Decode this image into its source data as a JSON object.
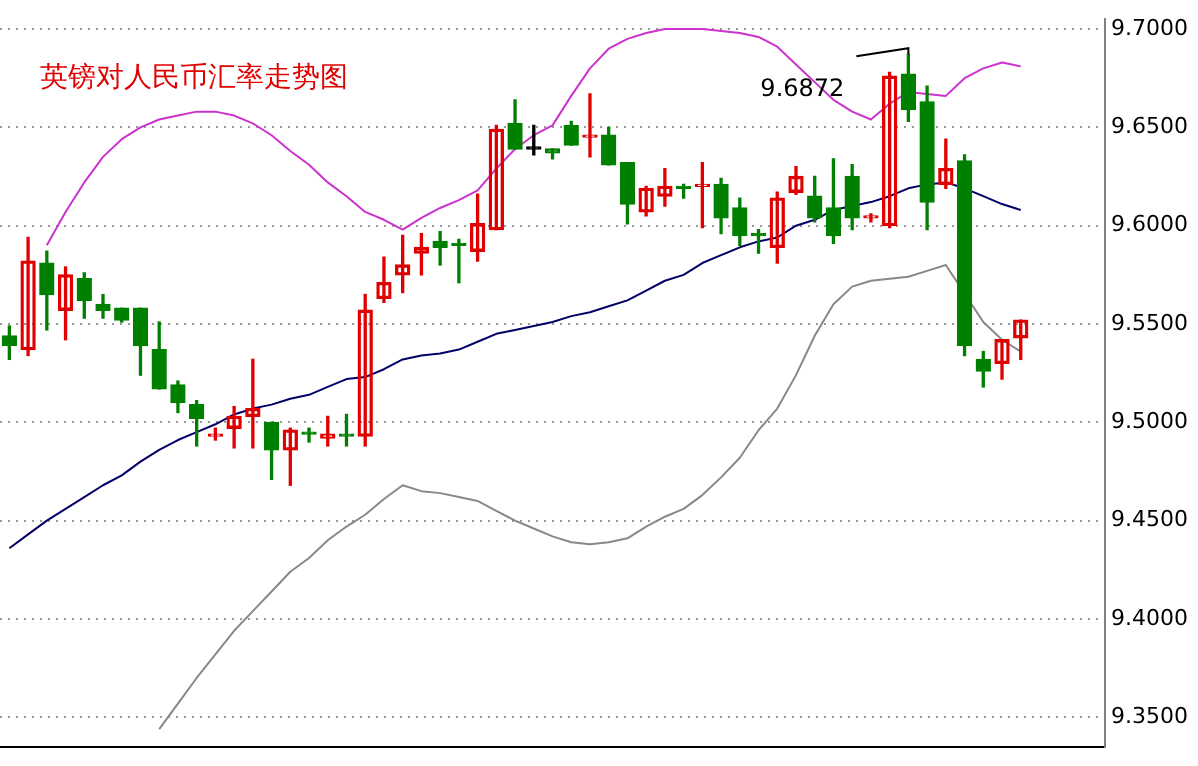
{
  "chart_data": {
    "type": "candlestick",
    "title": "英镑对人民币汇率走势图",
    "categories": [
      null,
      null,
      null,
      null,
      null,
      null,
      null,
      null,
      null,
      null,
      null,
      null,
      null,
      null,
      null,
      null,
      null,
      null,
      null,
      null,
      null,
      null,
      null,
      null,
      null,
      null,
      null,
      null,
      null,
      null,
      null,
      null,
      null,
      null,
      null,
      null,
      null,
      null,
      null,
      null,
      null,
      null,
      null,
      null,
      null,
      null,
      null,
      null,
      null,
      null,
      null,
      null,
      null,
      null,
      null
    ],
    "ohlc": [
      [
        9.544,
        9.549,
        9.532,
        9.539
      ],
      [
        9.537,
        9.594,
        9.534,
        9.582
      ],
      [
        9.581,
        9.587,
        9.547,
        9.565
      ],
      [
        9.557,
        9.579,
        9.542,
        9.575
      ],
      [
        9.573,
        9.576,
        9.553,
        9.562
      ],
      [
        9.56,
        9.565,
        9.553,
        9.557
      ],
      [
        9.558,
        9.558,
        9.551,
        9.552
      ],
      [
        9.558,
        9.558,
        9.524,
        9.539
      ],
      [
        9.537,
        9.551,
        9.517,
        9.517
      ],
      [
        9.519,
        9.521,
        9.505,
        9.51
      ],
      [
        9.509,
        9.511,
        9.488,
        9.502
      ],
      [
        9.493,
        9.497,
        9.491,
        9.494
      ],
      [
        9.497,
        9.508,
        9.487,
        9.503
      ],
      [
        9.503,
        9.532,
        9.487,
        9.507
      ],
      [
        9.5,
        9.5,
        9.471,
        9.486
      ],
      [
        9.486,
        9.497,
        9.468,
        9.496
      ],
      [
        9.495,
        9.497,
        9.49,
        9.494
      ],
      [
        9.492,
        9.503,
        9.488,
        9.494
      ],
      [
        9.494,
        9.504,
        9.488,
        9.493
      ],
      [
        9.493,
        9.565,
        9.488,
        9.557
      ],
      [
        9.563,
        9.584,
        9.561,
        9.571
      ],
      [
        9.575,
        9.595,
        9.566,
        9.58
      ],
      [
        9.586,
        9.596,
        9.575,
        9.589
      ],
      [
        9.592,
        9.597,
        9.58,
        9.589
      ],
      [
        9.591,
        9.593,
        9.571,
        9.59
      ],
      [
        9.587,
        9.616,
        9.582,
        9.601
      ],
      [
        9.598,
        9.651,
        9.598,
        9.649
      ],
      [
        9.652,
        9.664,
        9.639,
        9.639
      ],
      [
        9.639,
        9.651,
        9.636,
        9.639
      ],
      [
        9.639,
        9.639,
        9.634,
        9.637
      ],
      [
        9.651,
        9.653,
        9.641,
        9.641
      ],
      [
        9.645,
        9.667,
        9.635,
        9.646
      ],
      [
        9.646,
        9.65,
        9.631,
        9.631
      ],
      [
        9.632,
        9.632,
        9.601,
        9.611
      ],
      [
        9.607,
        9.62,
        9.605,
        9.619
      ],
      [
        9.615,
        9.629,
        9.61,
        9.62
      ],
      [
        9.62,
        9.621,
        9.614,
        9.619
      ],
      [
        9.62,
        9.632,
        9.599,
        9.621
      ],
      [
        9.621,
        9.624,
        9.596,
        9.604
      ],
      [
        9.609,
        9.614,
        9.59,
        9.595
      ],
      [
        9.596,
        9.598,
        9.586,
        9.595
      ],
      [
        9.589,
        9.617,
        9.581,
        9.614
      ],
      [
        9.617,
        9.63,
        9.616,
        9.625
      ],
      [
        9.615,
        9.625,
        9.602,
        9.604
      ],
      [
        9.609,
        9.634,
        9.591,
        9.595
      ],
      [
        9.625,
        9.631,
        9.598,
        9.604
      ],
      [
        9.604,
        9.606,
        9.602,
        9.605
      ],
      [
        9.6,
        9.678,
        9.599,
        9.676
      ],
      [
        9.677,
        9.6872,
        9.653,
        9.659
      ],
      [
        9.663,
        9.671,
        9.598,
        9.612
      ],
      [
        9.621,
        9.644,
        9.619,
        9.629
      ],
      [
        9.633,
        9.636,
        9.534,
        9.539
      ],
      [
        9.532,
        9.536,
        9.518,
        9.526
      ],
      [
        9.53,
        9.542,
        9.522,
        9.542
      ],
      [
        9.543,
        9.552,
        9.532,
        9.552
      ]
    ],
    "colors": [
      "#008000",
      "#e00000",
      "#008000",
      "#e00000",
      "#008000",
      "#008000",
      "#008000",
      "#008000",
      "#008000",
      "#008000",
      "#008000",
      "#e00000",
      "#e00000",
      "#e00000",
      "#008000",
      "#e00000",
      "#008000",
      "#e00000",
      "#008000",
      "#e00000",
      "#e00000",
      "#e00000",
      "#e00000",
      "#008000",
      "#008000",
      "#e00000",
      "#e00000",
      "#008000",
      "#000000",
      "#008000",
      "#008000",
      "#e00000",
      "#008000",
      "#008000",
      "#e00000",
      "#e00000",
      "#008000",
      "#e00000",
      "#008000",
      "#008000",
      "#008000",
      "#e00000",
      "#e00000",
      "#008000",
      "#008000",
      "#008000",
      "#e00000",
      "#e00000",
      "#008000",
      "#008000",
      "#e00000",
      "#008000",
      "#008000",
      "#e00000",
      "#e00000"
    ],
    "series": [
      {
        "type": "line",
        "color": "#cc33cc",
        "values": [
          null,
          null,
          9.59,
          9.607,
          9.622,
          9.635,
          9.644,
          9.65,
          9.654,
          9.656,
          9.658,
          9.658,
          9.656,
          9.652,
          9.646,
          9.638,
          9.631,
          9.622,
          9.615,
          9.607,
          9.603,
          9.598,
          9.604,
          9.609,
          9.613,
          9.618,
          9.629,
          9.639,
          9.646,
          9.651,
          9.666,
          9.68,
          9.69,
          9.695,
          9.698,
          9.7,
          9.7,
          9.7,
          9.699,
          9.698,
          9.696,
          9.691,
          9.682,
          9.673,
          9.664,
          9.658,
          9.654,
          9.662,
          9.668,
          9.667,
          9.666,
          9.675,
          9.68,
          9.683,
          9.681
        ]
      },
      {
        "type": "line",
        "color": "#000066",
        "values": [
          9.436,
          9.443,
          9.45,
          9.456,
          9.462,
          9.468,
          9.473,
          9.48,
          9.486,
          9.491,
          9.495,
          9.499,
          9.504,
          9.507,
          9.509,
          9.512,
          9.514,
          9.518,
          9.522,
          9.523,
          9.527,
          9.532,
          9.534,
          9.535,
          9.537,
          9.541,
          9.545,
          9.547,
          9.549,
          9.551,
          9.554,
          9.556,
          9.559,
          9.562,
          9.567,
          9.572,
          9.575,
          9.581,
          9.585,
          9.589,
          9.592,
          9.594,
          9.6,
          9.603,
          9.608,
          9.61,
          9.612,
          9.615,
          9.619,
          9.621,
          9.622,
          9.619,
          9.615,
          9.611,
          9.608
        ]
      },
      {
        "type": "line",
        "color": "#888888",
        "values": [
          null,
          null,
          null,
          null,
          null,
          null,
          null,
          null,
          9.344,
          9.357,
          9.37,
          9.382,
          9.394,
          9.404,
          9.414,
          9.424,
          9.431,
          9.44,
          9.447,
          9.453,
          9.461,
          9.468,
          9.465,
          9.464,
          9.462,
          9.46,
          9.455,
          9.45,
          9.446,
          9.442,
          9.439,
          9.438,
          9.439,
          9.441,
          9.447,
          9.452,
          9.456,
          9.463,
          9.472,
          9.482,
          9.496,
          9.507,
          9.524,
          9.544,
          9.56,
          9.569,
          9.572,
          9.573,
          9.574,
          9.577,
          9.58,
          null,
          9.551,
          9.542,
          9.536
        ]
      }
    ],
    "ylim": [
      9.335,
      9.705
    ],
    "yticks": [
      {
        "value": 9.35,
        "label": "9.3500"
      },
      {
        "value": 9.4,
        "label": "9.4000"
      },
      {
        "value": 9.45,
        "label": "9.4500"
      },
      {
        "value": 9.5,
        "label": "9.5000"
      },
      {
        "value": 9.55,
        "label": "9.5500"
      },
      {
        "value": 9.6,
        "label": "9.6000"
      },
      {
        "value": 9.65,
        "label": "9.6500"
      },
      {
        "value": 9.7,
        "label": "9.7000"
      }
    ],
    "grid": "y",
    "tick_labels": "y",
    "annotations": [
      "9.6872"
    ]
  }
}
